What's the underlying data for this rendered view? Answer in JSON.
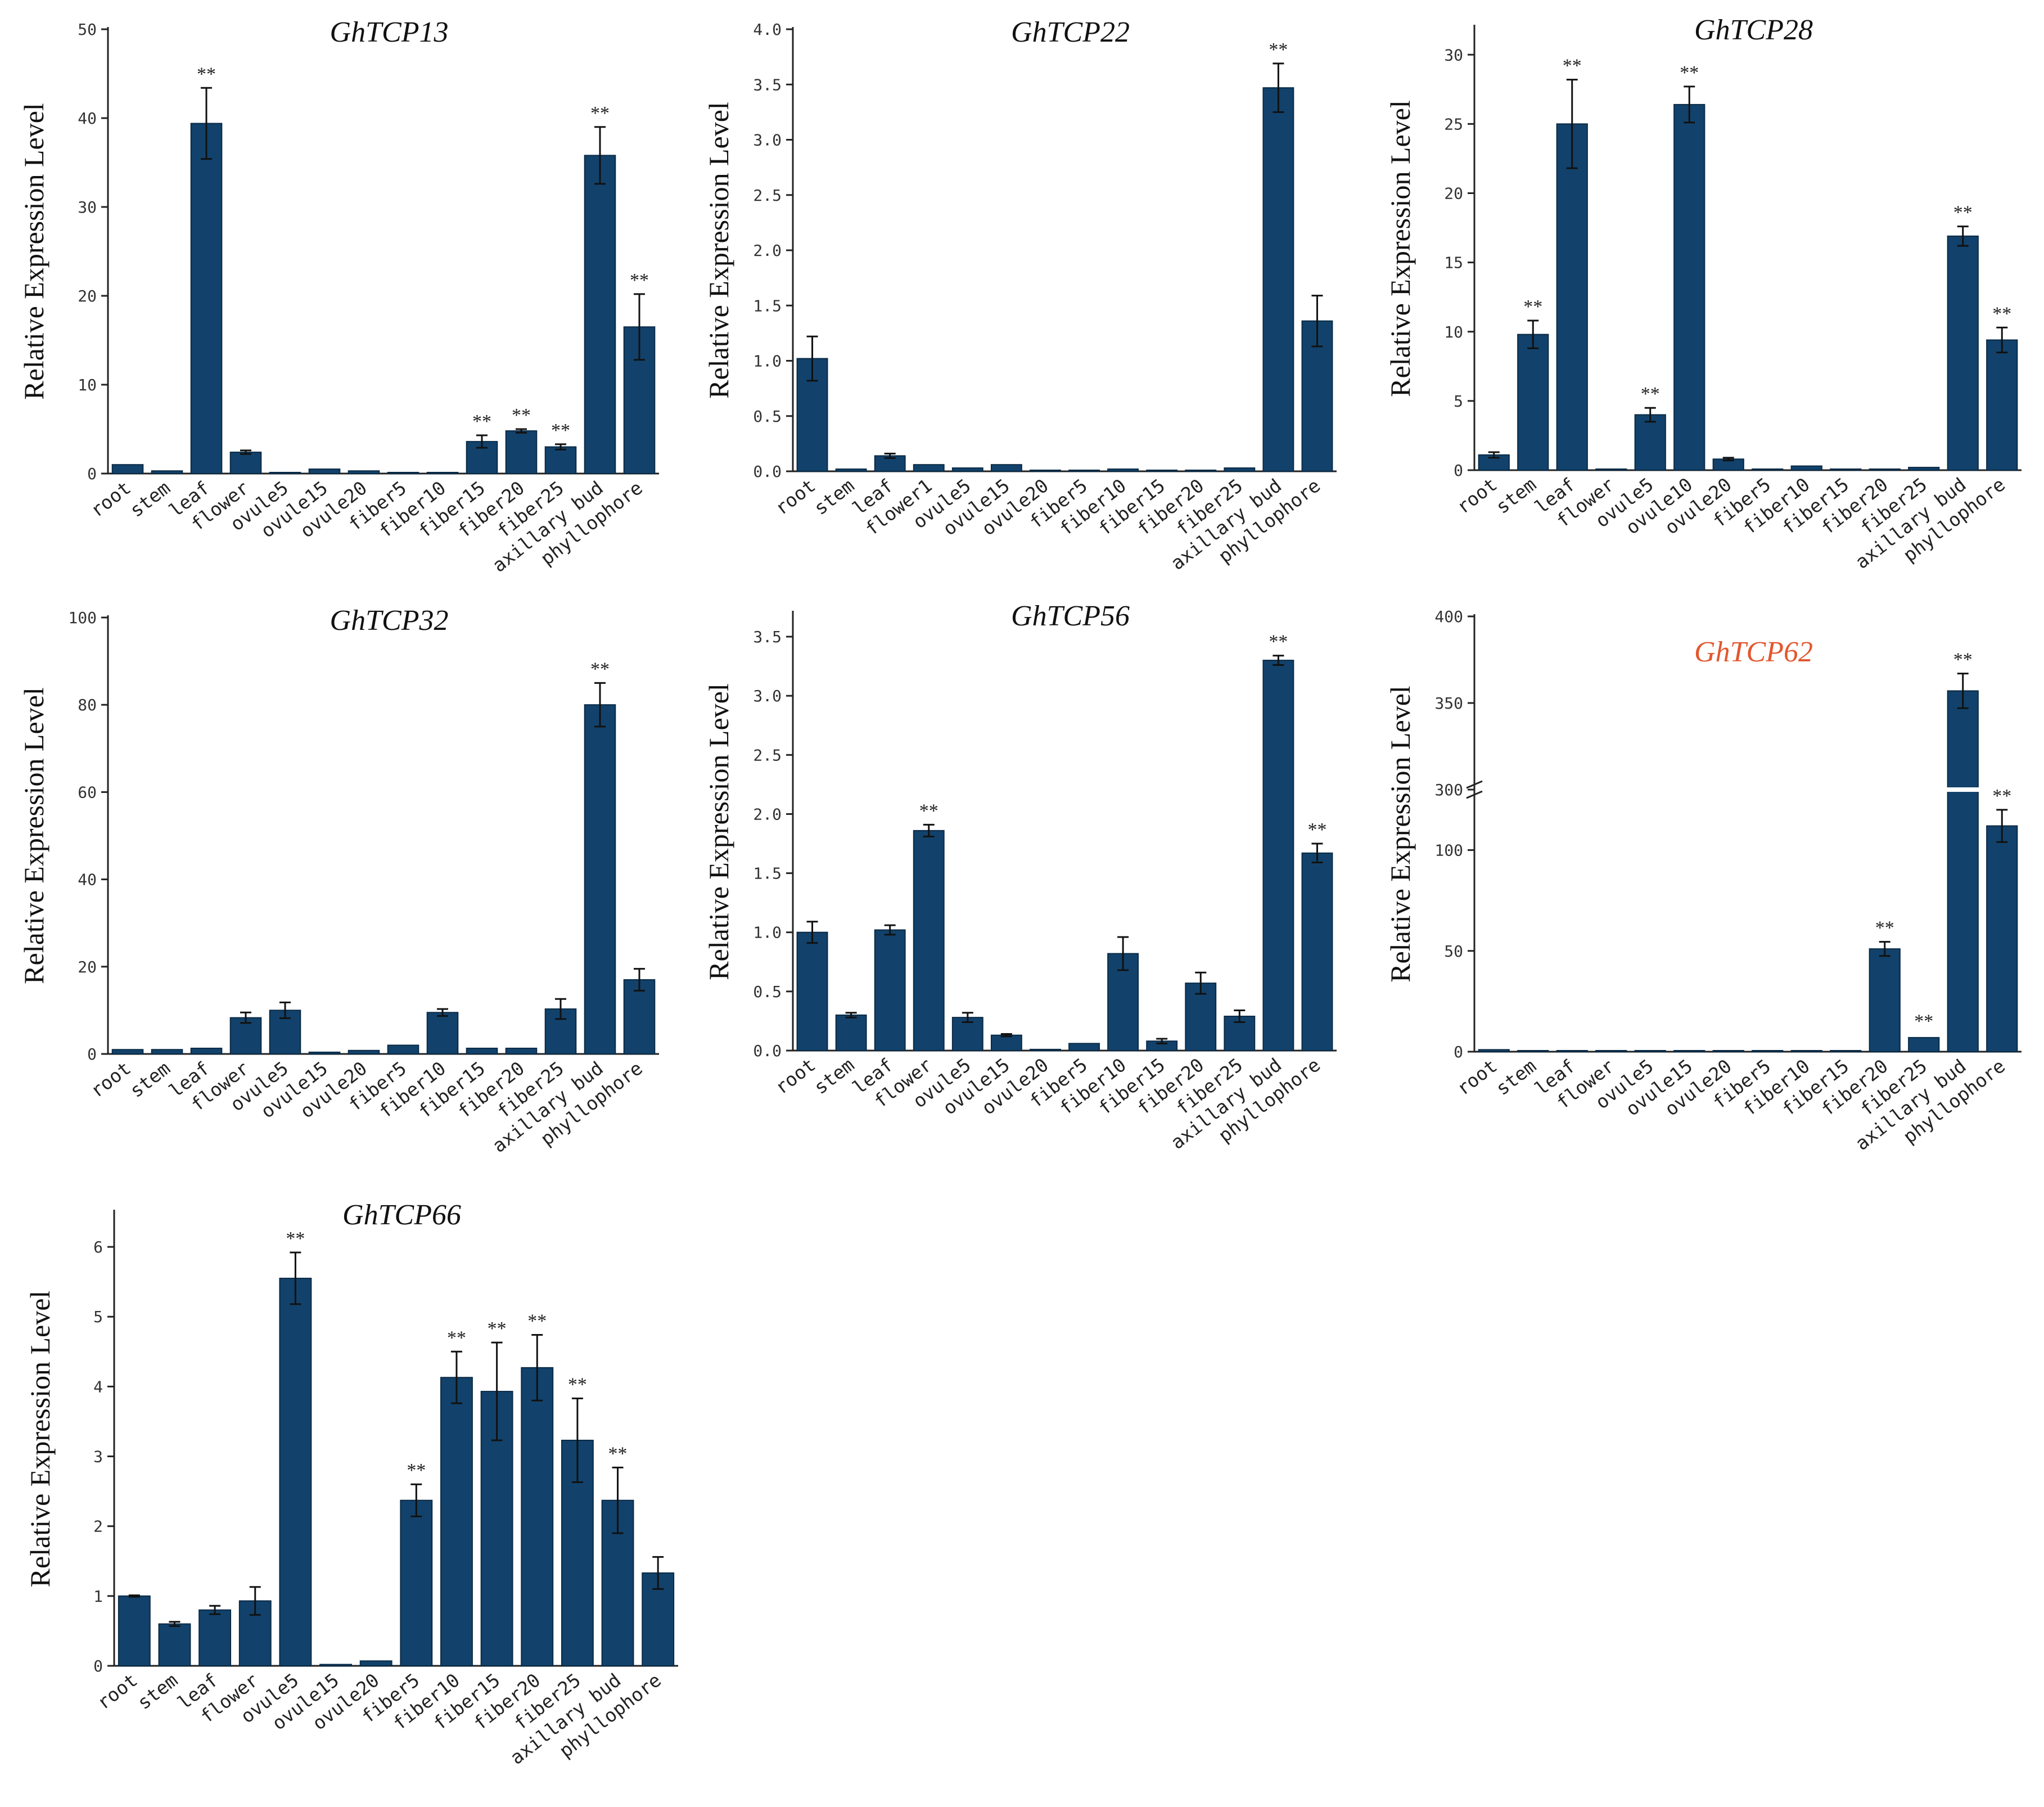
{
  "figure": {
    "bar_color": "#12426b",
    "error_color": "#111111",
    "axis_color": "#222222",
    "title_color": "#111111",
    "highlight_title_color": "#e3562e"
  },
  "chart_data": [
    {
      "type": "bar",
      "title": "GhTCP13",
      "ylabel": "Relative Expression Level",
      "ylim": [
        0,
        50
      ],
      "yticks": [
        0,
        10,
        20,
        30,
        40,
        50
      ],
      "ytick_labels": [
        "0",
        "10",
        "20",
        "30",
        "40",
        "50"
      ],
      "categories": [
        "root",
        "stem",
        "leaf",
        "flower",
        "ovule5",
        "ovule15",
        "ovule20",
        "fiber5",
        "fiber10",
        "fiber15",
        "fiber20",
        "fiber25",
        "axillary bud",
        "phyllophore"
      ],
      "values": [
        1.0,
        0.3,
        39.4,
        2.4,
        0.05,
        0.5,
        0.3,
        0.1,
        0.1,
        3.6,
        4.8,
        3.0,
        35.8,
        16.5
      ],
      "errors": [
        0.1,
        0.05,
        4.0,
        0.2,
        0.02,
        0.1,
        0.05,
        0.02,
        0.02,
        0.7,
        0.2,
        0.3,
        3.2,
        3.7
      ],
      "significance": [
        "",
        "",
        "**",
        "",
        "",
        "",
        "",
        "",
        "",
        "**",
        "**",
        "**",
        "**",
        "**"
      ]
    },
    {
      "type": "bar",
      "title": "GhTCP22",
      "ylabel": "Relative Expression Level",
      "ylim": [
        0,
        4.0
      ],
      "yticks": [
        0,
        0.5,
        1,
        1.5,
        2,
        2.5,
        3,
        3.5,
        4
      ],
      "ytick_labels": [
        "0.0",
        "0.5",
        "1.0",
        "1.5",
        "2.0",
        "2.5",
        "3.0",
        "3.5",
        "4.0"
      ],
      "categories": [
        "root",
        "stem",
        "leaf",
        "flower1",
        "ovule5",
        "ovule15",
        "ovule20",
        "fiber5",
        "fiber10",
        "fiber15",
        "fiber20",
        "fiber25",
        "axillary bud",
        "phyllophore"
      ],
      "values": [
        1.02,
        0.02,
        0.14,
        0.06,
        0.03,
        0.06,
        0.01,
        0.01,
        0.02,
        0.01,
        0.01,
        0.03,
        3.47,
        1.36
      ],
      "errors": [
        0.2,
        0.01,
        0.02,
        0.01,
        0.01,
        0.01,
        0.005,
        0.005,
        0.005,
        0.005,
        0.005,
        0.01,
        0.22,
        0.23
      ],
      "significance": [
        "",
        "",
        "",
        "",
        "",
        "",
        "",
        "",
        "",
        "",
        "",
        "",
        "**",
        ""
      ]
    },
    {
      "type": "bar",
      "title": "GhTCP28",
      "ylabel": "Relative Expression Level",
      "ylim": [
        0,
        32
      ],
      "yticks": [
        0,
        5,
        10,
        15,
        20,
        25,
        30
      ],
      "ytick_labels": [
        "0",
        "5",
        "10",
        "15",
        "20",
        "25",
        "30"
      ],
      "categories": [
        "root",
        "stem",
        "leaf",
        "flower",
        "ovule5",
        "ovule10",
        "ovule20",
        "fiber5",
        "fiber10",
        "fiber15",
        "fiber20",
        "fiber25",
        "axillary bud",
        "phyllophore"
      ],
      "values": [
        1.1,
        9.8,
        25.0,
        0.05,
        4.0,
        26.4,
        0.8,
        0.05,
        0.3,
        0.05,
        0.05,
        0.2,
        16.9,
        9.4
      ],
      "errors": [
        0.2,
        1.0,
        3.2,
        0.02,
        0.5,
        1.3,
        0.1,
        0.02,
        0.05,
        0.02,
        0.02,
        0.05,
        0.7,
        0.9
      ],
      "significance": [
        "",
        "**",
        "**",
        "",
        "**",
        "**",
        "",
        "",
        "",
        "",
        "",
        "",
        "**",
        "**"
      ]
    },
    {
      "type": "bar",
      "title": "GhTCP32",
      "ylabel": "Relative Expression Level",
      "ylim": [
        0,
        100
      ],
      "yticks": [
        0,
        20,
        40,
        60,
        80,
        100
      ],
      "ytick_labels": [
        "0",
        "20",
        "40",
        "60",
        "80",
        "100"
      ],
      "categories": [
        "root",
        "stem",
        "leaf",
        "flower",
        "ovule5",
        "ovule15",
        "ovule20",
        "fiber5",
        "fiber10",
        "fiber15",
        "fiber20",
        "fiber25",
        "axillary bud",
        "phyllophore"
      ],
      "values": [
        1.0,
        1.0,
        1.3,
        8.3,
        10.0,
        0.4,
        0.8,
        2.0,
        9.5,
        1.3,
        1.3,
        10.3,
        80.0,
        17.0
      ],
      "errors": [
        0.2,
        0.2,
        0.3,
        1.2,
        1.8,
        0.1,
        0.2,
        0.3,
        0.8,
        0.2,
        0.2,
        2.3,
        5.0,
        2.5
      ],
      "significance": [
        "",
        "",
        "",
        "",
        "",
        "",
        "",
        "",
        "",
        "",
        "",
        "",
        "**",
        ""
      ]
    },
    {
      "type": "bar",
      "title": "GhTCP56",
      "ylabel": "Relative Expression Level",
      "ylim": [
        0,
        3.7
      ],
      "yticks": [
        0,
        0.5,
        1,
        1.5,
        2,
        2.5,
        3,
        3.5
      ],
      "ytick_labels": [
        "0.0",
        "0.5",
        "1.0",
        "1.5",
        "2.0",
        "2.5",
        "3.0",
        "3.5"
      ],
      "categories": [
        "root",
        "stem",
        "leaf",
        "flower",
        "ovule5",
        "ovule15",
        "ovule20",
        "fiber5",
        "fiber10",
        "fiber15",
        "fiber20",
        "fiber25",
        "axillary bud",
        "phyllophore"
      ],
      "values": [
        1.0,
        0.3,
        1.02,
        1.86,
        0.28,
        0.13,
        0.01,
        0.06,
        0.82,
        0.08,
        0.57,
        0.29,
        3.3,
        1.67
      ],
      "errors": [
        0.09,
        0.02,
        0.04,
        0.05,
        0.04,
        0.01,
        0.005,
        0.02,
        0.14,
        0.02,
        0.09,
        0.05,
        0.04,
        0.08
      ],
      "significance": [
        "",
        "",
        "",
        "**",
        "",
        "",
        "",
        "",
        "",
        "",
        "",
        "",
        "**",
        "**"
      ]
    },
    {
      "type": "bar",
      "title": "GhTCP62",
      "title_color": "#e3562e",
      "ylabel": "Relative Expression Level",
      "y_axis_break": {
        "lower": [
          0,
          130
        ],
        "upper": [
          300,
          400
        ]
      },
      "yticks": [
        0,
        50,
        100,
        300,
        350,
        400
      ],
      "ytick_labels": [
        "0",
        "50",
        "100",
        "300",
        "350",
        "400"
      ],
      "categories": [
        "root",
        "stem",
        "leaf",
        "flower",
        "ovule5",
        "ovule15",
        "ovule20",
        "fiber5",
        "fiber10",
        "fiber15",
        "fiber20",
        "fiber25",
        "axillary bud",
        "phyllophore"
      ],
      "values": [
        1.0,
        0.3,
        0.3,
        0.1,
        0.1,
        0.1,
        0.1,
        0.1,
        0.1,
        0.1,
        51.0,
        7.0,
        357.0,
        112.0
      ],
      "errors": [
        0.2,
        0.05,
        0.05,
        0.02,
        0.02,
        0.02,
        0.02,
        0.02,
        0.02,
        0.02,
        3.5,
        1.2,
        10.0,
        8.0
      ],
      "significance": [
        "",
        "",
        "",
        "",
        "",
        "",
        "",
        "",
        "",
        "",
        "**",
        "**",
        "**",
        "**"
      ]
    },
    {
      "type": "bar",
      "title": "GhTCP66",
      "ylabel": "Relative Expression Level",
      "ylim": [
        0,
        6.5
      ],
      "yticks": [
        0,
        1,
        2,
        3,
        4,
        5,
        6
      ],
      "ytick_labels": [
        "0",
        "1",
        "2",
        "3",
        "4",
        "5",
        "6"
      ],
      "categories": [
        "root",
        "stem",
        "leaf",
        "flower",
        "ovule5",
        "ovule15",
        "ovule20",
        "fiber5",
        "fiber10",
        "fiber15",
        "fiber20",
        "fiber25",
        "axillary bud",
        "phyllophore"
      ],
      "values": [
        1.0,
        0.6,
        0.8,
        0.93,
        5.55,
        0.02,
        0.07,
        2.37,
        4.13,
        3.93,
        4.27,
        3.23,
        2.37,
        1.33
      ],
      "errors": [
        0.01,
        0.03,
        0.06,
        0.2,
        0.37,
        0.01,
        0.01,
        0.23,
        0.37,
        0.7,
        0.47,
        0.6,
        0.47,
        0.23
      ],
      "significance": [
        "",
        "",
        "",
        "",
        "**",
        "",
        "",
        "**",
        "**",
        "**",
        "**",
        "**",
        "**",
        ""
      ]
    }
  ]
}
